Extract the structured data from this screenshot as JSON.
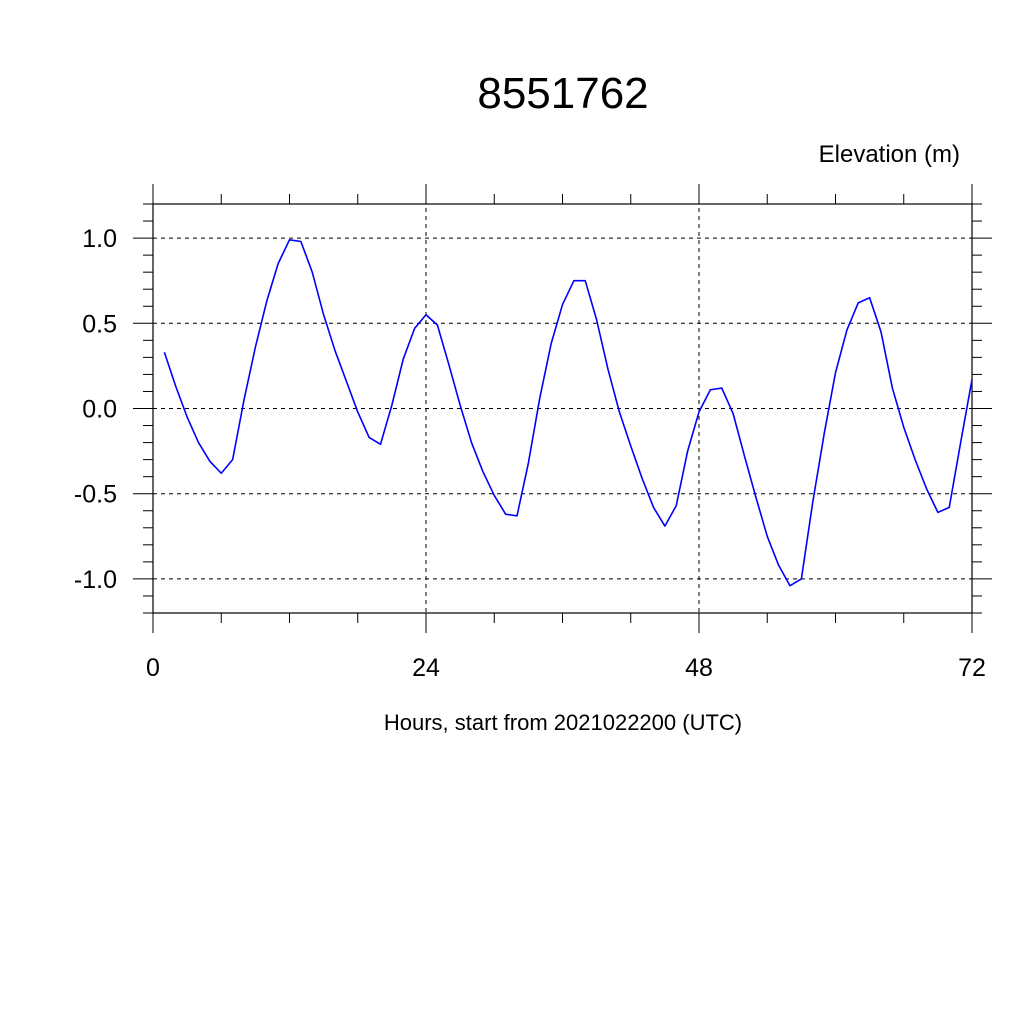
{
  "chart_data": {
    "type": "line",
    "title": "8551762",
    "ylabel": "Elevation (m)",
    "xlabel": "Hours, start from 2021022200 (UTC)",
    "xlim": [
      0,
      72
    ],
    "ylim": [
      -1.2,
      1.2
    ],
    "x_ticks": [
      0,
      24,
      48,
      72
    ],
    "x_tick_labels": [
      "0",
      "24",
      "48",
      "72"
    ],
    "y_ticks": [
      -1.0,
      -0.5,
      0.0,
      0.5,
      1.0
    ],
    "y_tick_labels": [
      "-1.0",
      "-0.5",
      "0.0",
      "0.5",
      "1.0"
    ],
    "grid": true,
    "series_color": "#0000ff",
    "series": [
      {
        "x": [
          1,
          2,
          3,
          4,
          5,
          6,
          7,
          8,
          9,
          10,
          11,
          12,
          13,
          14,
          15,
          16,
          17,
          18,
          19,
          20,
          21,
          22,
          23,
          24,
          25,
          26,
          27,
          28,
          29,
          30,
          31,
          32,
          33,
          34,
          35,
          36,
          37,
          38,
          39,
          40,
          41,
          42,
          43,
          44,
          45,
          46,
          47,
          48,
          49,
          50,
          51,
          52,
          53,
          54,
          55,
          56,
          57,
          58,
          59,
          60,
          61,
          62,
          63,
          64,
          65,
          66,
          67,
          68,
          69,
          70,
          71,
          72
        ],
        "values": [
          0.33,
          0.13,
          -0.05,
          -0.2,
          -0.31,
          -0.38,
          -0.3,
          0.05,
          0.36,
          0.63,
          0.85,
          0.99,
          0.98,
          0.8,
          0.55,
          0.34,
          0.16,
          -0.02,
          -0.17,
          -0.21,
          0.02,
          0.29,
          0.47,
          0.55,
          0.49,
          0.26,
          0.02,
          -0.2,
          -0.37,
          -0.51,
          -0.62,
          -0.63,
          -0.32,
          0.06,
          0.38,
          0.61,
          0.75,
          0.75,
          0.52,
          0.23,
          -0.02,
          -0.22,
          -0.41,
          -0.58,
          -0.69,
          -0.57,
          -0.25,
          -0.02,
          0.11,
          0.12,
          -0.03,
          -0.28,
          -0.52,
          -0.75,
          -0.92,
          -1.04,
          -1.0,
          -0.55,
          -0.15,
          0.21,
          0.46,
          0.62,
          0.65,
          0.45,
          0.12,
          -0.11,
          -0.3,
          -0.47,
          -0.61,
          -0.58,
          -0.2,
          0.17
        ]
      }
    ]
  }
}
